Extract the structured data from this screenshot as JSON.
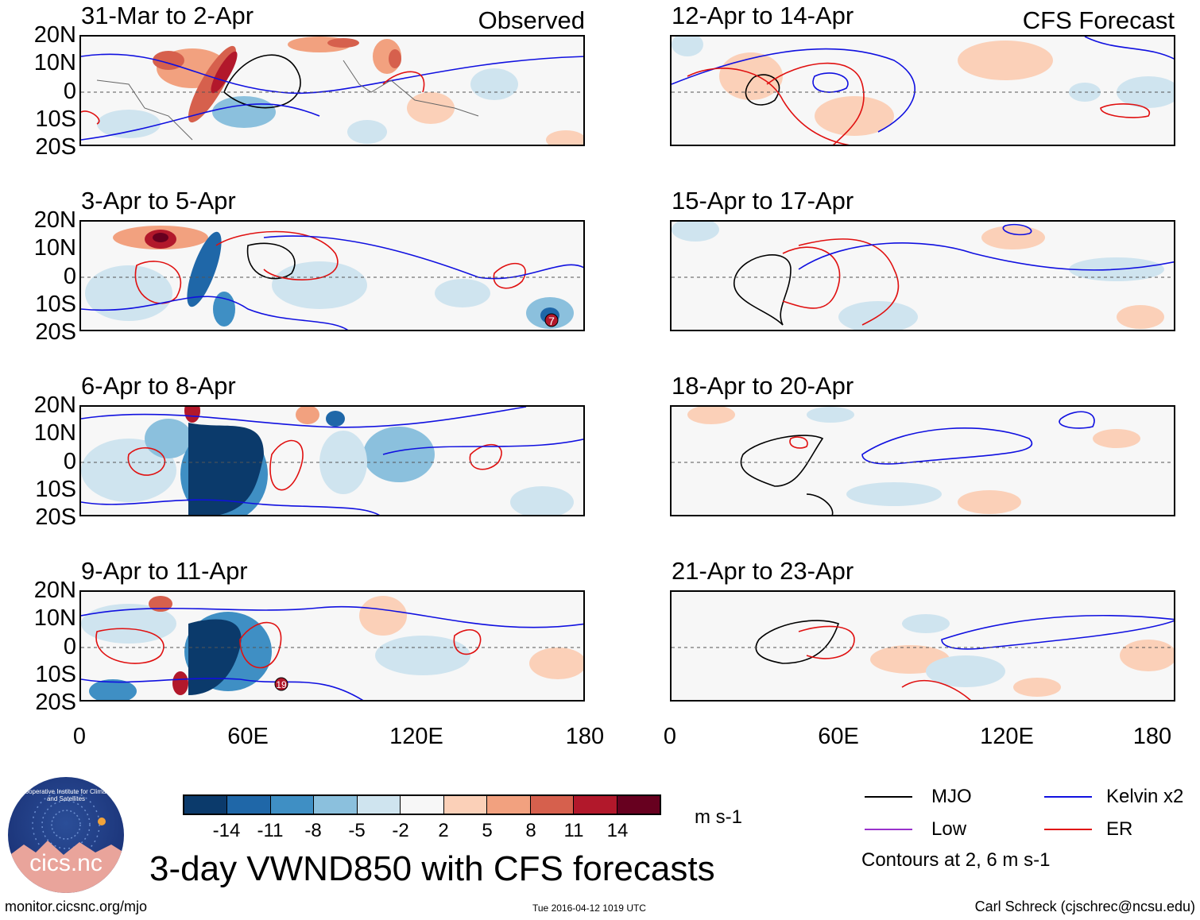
{
  "figure": {
    "title": "3-day VWND850 with CFS forecasts",
    "source_url": "monitor.cicsnc.org/mjo",
    "timestamp": "Tue 2016-04-12 1019 UTC",
    "author": "Carl Schreck (cjschrec@ncsu.edu)",
    "logo_text": "cics.nc",
    "logo_ring": "Cooperative Institute for Climate and Satellites"
  },
  "columns": {
    "left_label": "Observed",
    "right_label": "CFS Forecast"
  },
  "axes": {
    "y_ticks": [
      "20N",
      "10N",
      "0",
      "10S",
      "20S"
    ],
    "x_ticks": [
      "0",
      "60E",
      "120E",
      "180"
    ]
  },
  "panels_left": [
    {
      "title": "31-Mar to 2-Apr"
    },
    {
      "title": "3-Apr to 5-Apr"
    },
    {
      "title": "6-Apr to 8-Apr"
    },
    {
      "title": "9-Apr to 11-Apr"
    }
  ],
  "panels_right": [
    {
      "title": "12-Apr to 14-Apr"
    },
    {
      "title": "15-Apr to 17-Apr"
    },
    {
      "title": "18-Apr to 20-Apr"
    },
    {
      "title": "21-Apr to 23-Apr"
    }
  ],
  "storm_labels": {
    "p2": "7",
    "p4": "19"
  },
  "colorbar": {
    "unit": "m s-1",
    "ticks": [
      "-14",
      "-11",
      "-8",
      "-5",
      "-2",
      "2",
      "5",
      "8",
      "11",
      "14"
    ],
    "colors": [
      "#0b3a6b",
      "#1f67a8",
      "#3f8fc4",
      "#8bc0dd",
      "#cfe4ef",
      "#f7f7f7",
      "#fbd0b8",
      "#f2a17f",
      "#d6604d",
      "#b2182b",
      "#67001f"
    ]
  },
  "legend": {
    "items": [
      {
        "label": "MJO",
        "color": "#000000"
      },
      {
        "label": "Kelvin x2",
        "color": "#1010e0"
      },
      {
        "label": "Low",
        "color": "#9932cc"
      },
      {
        "label": "ER",
        "color": "#e01010"
      }
    ],
    "note": "Contours at 2, 6 m s-1"
  }
}
